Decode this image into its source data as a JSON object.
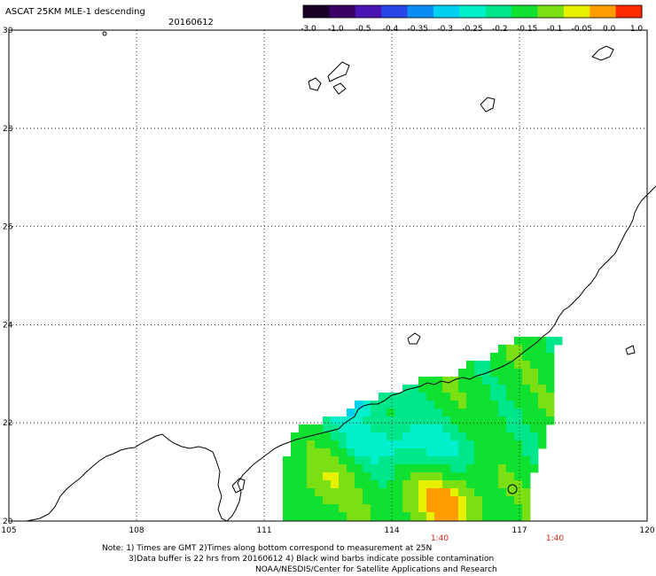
{
  "title": "ASCAT 25KM MLE-1 descending",
  "date": "20160612",
  "colorbar": {
    "labels": [
      "-3.0",
      "-1.0",
      "-0.5",
      "-0.4",
      "-0.35",
      "-0.3",
      "-0.25",
      "-0.2",
      "-0.15",
      "-0.1",
      "-0.05",
      "0.0",
      "1.0"
    ],
    "colors": [
      "#1a0026",
      "#3a0066",
      "#4b14b4",
      "#2746e8",
      "#0a8cf5",
      "#00d0f0",
      "#00f0cc",
      "#00e68a",
      "#10e030",
      "#7ae014",
      "#e6f000",
      "#ff9c00",
      "#ff2a00"
    ]
  },
  "map": {
    "lat_labels": [
      "30",
      "28",
      "26",
      "24",
      "22",
      "20"
    ],
    "lon_labels": [
      "105",
      "108",
      "111",
      "114",
      "117",
      "120"
    ],
    "time_labels": [
      "1:40",
      "1:40"
    ],
    "time_color": "#d42a1a"
  },
  "notes": [
    "Note: 1) Times are GMT 2)Times along bottom correspond to measurement at 25N",
    "3)Data buffer is 22 hrs from 20160612 4) Black wind barbs indicate possible contamination",
    "NOAA/NESDIS/Center for Satellite Applications and Research"
  ]
}
